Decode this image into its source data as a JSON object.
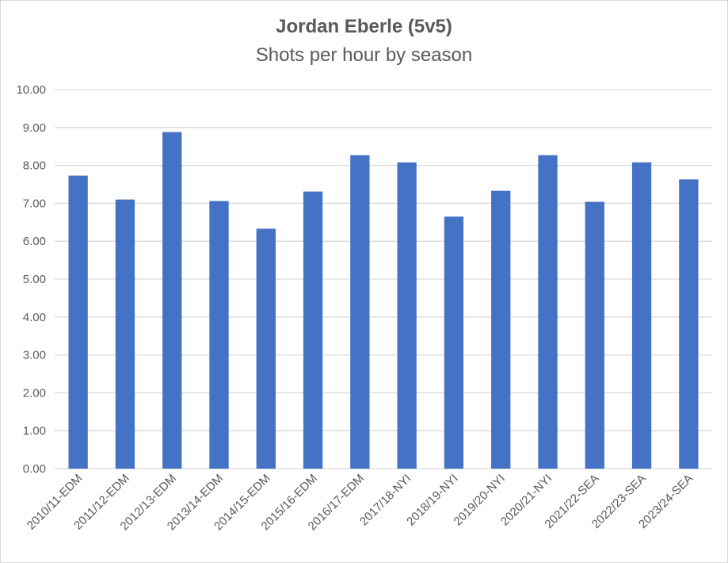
{
  "chart_data": {
    "type": "bar",
    "title": "Jordan Eberle (5v5)",
    "subtitle": "Shots per hour by season",
    "xlabel": "",
    "ylabel": "",
    "ylim": [
      0,
      10
    ],
    "yticks": [
      "0.00",
      "1.00",
      "2.00",
      "3.00",
      "4.00",
      "5.00",
      "6.00",
      "7.00",
      "8.00",
      "9.00",
      "10.00"
    ],
    "grid": true,
    "categories": [
      "2010/11-EDM",
      "2011/12-EDM",
      "2012/13-EDM",
      "2013/14-EDM",
      "2014/15-EDM",
      "2015/16-EDM",
      "2016/17-EDM",
      "2017/18-NYI",
      "2018/19-NYI",
      "2019/20-NYI",
      "2020/21-NYI",
      "2021/22-SEA",
      "2022/23-SEA",
      "2023/24-SEA"
    ],
    "values": [
      7.73,
      7.1,
      8.88,
      7.06,
      6.33,
      7.31,
      8.27,
      8.08,
      6.65,
      7.33,
      8.27,
      7.04,
      8.08,
      7.63
    ],
    "bar_color": "#4472c4",
    "grid_color": "#d9d9d9"
  }
}
